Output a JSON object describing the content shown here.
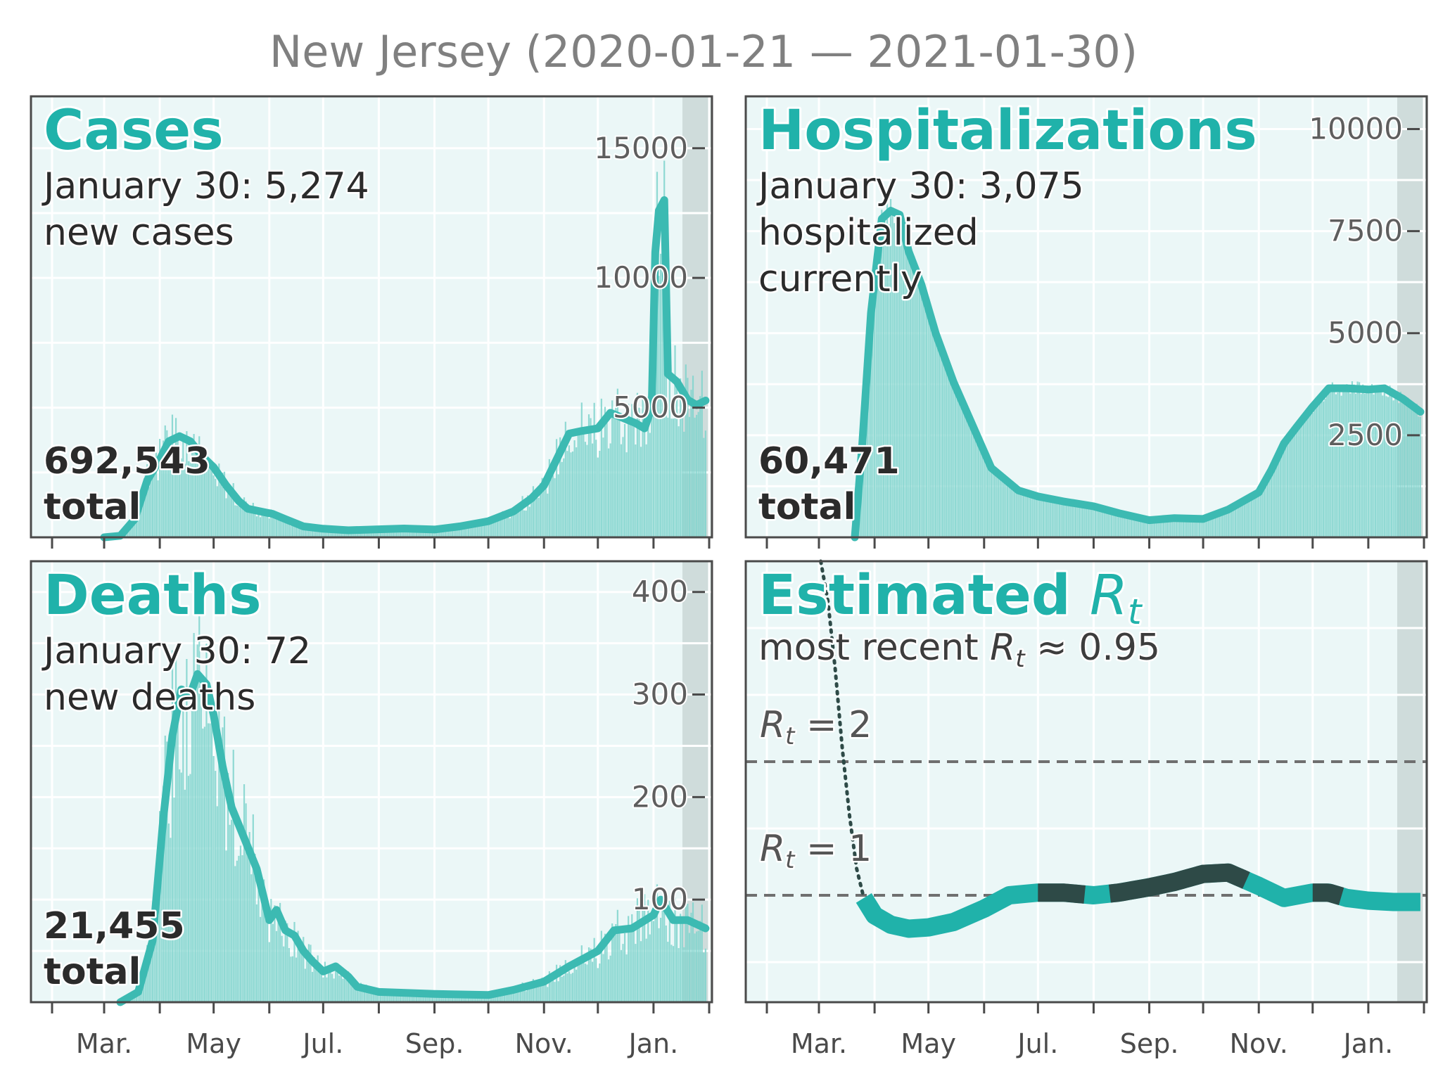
{
  "title": "New Jersey (2020-01-21 — 2021-01-30)",
  "colors": {
    "accent": "#20b2aa",
    "line": "#3cbab2",
    "bars": "#7fd3cc",
    "panel_bg": "#ebf7f7",
    "shade": "#cfdcdb",
    "dark": "#2e4a47",
    "text": "#2b2b2b",
    "tick_text": "#5e5e5e",
    "title_text": "#808080"
  },
  "x_ticks": [
    "Mar.",
    "May",
    "Jul.",
    "Sep.",
    "Nov.",
    "Jan."
  ],
  "panels": {
    "cases": {
      "title": "Cases",
      "subtitle_line1": "January 30: 5,274",
      "subtitle_line2": "new cases",
      "total_value": "692,543",
      "total_label": "total"
    },
    "hospitalizations": {
      "title": "Hospitalizations",
      "subtitle_line1": "January 30: 3,075",
      "subtitle_line2": "hospitalized",
      "subtitle_line3": "currently",
      "total_value": "60,471",
      "total_label": "total"
    },
    "deaths": {
      "title": "Deaths",
      "subtitle_line1": "January 30: 72",
      "subtitle_line2": "new deaths",
      "total_value": "21,455",
      "total_label": "total"
    },
    "rt": {
      "title": "Estimated",
      "title_symbol": "R",
      "title_sub": "t",
      "recent_prefix": "most recent",
      "recent_symbol": "R",
      "recent_sub": "t",
      "recent_value": "≈ 0.95",
      "ref2_symbol": "R",
      "ref2_sub": "t",
      "ref2_value": "= 2",
      "ref1_symbol": "R",
      "ref1_sub": "t",
      "ref1_value": "= 1"
    }
  },
  "chart_data": [
    {
      "name": "cases",
      "type": "bar+line",
      "x_range": [
        "2020-02-01",
        "2021-02-01"
      ],
      "y_ticks": [
        5000,
        10000,
        15000
      ],
      "ylim": [
        0,
        17000
      ],
      "shaded_from": "2021-01-17",
      "smoothed": [
        [
          "2020-03-01",
          0
        ],
        [
          "2020-03-10",
          60
        ],
        [
          "2020-03-18",
          700
        ],
        [
          "2020-03-25",
          2200
        ],
        [
          "2020-04-01",
          3000
        ],
        [
          "2020-04-06",
          3700
        ],
        [
          "2020-04-12",
          3900
        ],
        [
          "2020-04-18",
          3700
        ],
        [
          "2020-04-25",
          3100
        ],
        [
          "2020-05-01",
          2700
        ],
        [
          "2020-05-08",
          2000
        ],
        [
          "2020-05-15",
          1400
        ],
        [
          "2020-05-20",
          1100
        ],
        [
          "2020-05-27",
          1000
        ],
        [
          "2020-06-03",
          900
        ],
        [
          "2020-06-10",
          700
        ],
        [
          "2020-06-20",
          420
        ],
        [
          "2020-07-01",
          330
        ],
        [
          "2020-07-15",
          270
        ],
        [
          "2020-08-01",
          310
        ],
        [
          "2020-08-15",
          340
        ],
        [
          "2020-09-01",
          300
        ],
        [
          "2020-09-15",
          420
        ],
        [
          "2020-10-01",
          620
        ],
        [
          "2020-10-15",
          1000
        ],
        [
          "2020-10-25",
          1500
        ],
        [
          "2020-11-01",
          2000
        ],
        [
          "2020-11-08",
          3000
        ],
        [
          "2020-11-15",
          4000
        ],
        [
          "2020-11-22",
          4100
        ],
        [
          "2020-12-01",
          4200
        ],
        [
          "2020-12-08",
          4800
        ],
        [
          "2020-12-15",
          4600
        ],
        [
          "2020-12-22",
          4400
        ],
        [
          "2020-12-27",
          4200
        ],
        [
          "2020-12-31",
          5000
        ],
        [
          "2021-01-02",
          11000
        ],
        [
          "2021-01-04",
          12600
        ],
        [
          "2021-01-07",
          13000
        ],
        [
          "2021-01-09",
          6300
        ],
        [
          "2021-01-14",
          6000
        ],
        [
          "2021-01-20",
          5300
        ],
        [
          "2021-01-25",
          5100
        ],
        [
          "2021-01-30",
          5274
        ]
      ]
    },
    {
      "name": "hospitalizations",
      "type": "bar+line",
      "x_range": [
        "2020-02-01",
        "2021-02-01"
      ],
      "y_ticks": [
        2500,
        5000,
        7500,
        10000
      ],
      "ylim": [
        0,
        10800
      ],
      "shaded_from": "2021-01-17",
      "smoothed": [
        [
          "2020-03-21",
          0
        ],
        [
          "2020-03-25",
          2200
        ],
        [
          "2020-03-30",
          5500
        ],
        [
          "2020-04-05",
          7800
        ],
        [
          "2020-04-10",
          8000
        ],
        [
          "2020-04-15",
          7900
        ],
        [
          "2020-04-20",
          7000
        ],
        [
          "2020-04-27",
          6200
        ],
        [
          "2020-05-05",
          5000
        ],
        [
          "2020-05-15",
          3800
        ],
        [
          "2020-05-25",
          2800
        ],
        [
          "2020-06-05",
          1700
        ],
        [
          "2020-06-20",
          1150
        ],
        [
          "2020-07-01",
          1000
        ],
        [
          "2020-07-15",
          880
        ],
        [
          "2020-08-01",
          760
        ],
        [
          "2020-08-15",
          590
        ],
        [
          "2020-09-01",
          420
        ],
        [
          "2020-09-15",
          470
        ],
        [
          "2020-10-01",
          450
        ],
        [
          "2020-10-15",
          680
        ],
        [
          "2020-11-01",
          1100
        ],
        [
          "2020-11-08",
          1650
        ],
        [
          "2020-11-15",
          2300
        ],
        [
          "2020-11-22",
          2700
        ],
        [
          "2020-12-01",
          3200
        ],
        [
          "2020-12-10",
          3650
        ],
        [
          "2020-12-20",
          3650
        ],
        [
          "2021-01-01",
          3620
        ],
        [
          "2021-01-10",
          3650
        ],
        [
          "2021-01-20",
          3400
        ],
        [
          "2021-01-30",
          3075
        ]
      ]
    },
    {
      "name": "deaths",
      "type": "bar+line",
      "x_range": [
        "2020-02-01",
        "2021-02-01"
      ],
      "y_ticks": [
        100,
        200,
        300,
        400
      ],
      "ylim": [
        0,
        430
      ],
      "shaded_from": "2021-01-17",
      "smoothed": [
        [
          "2020-03-10",
          0
        ],
        [
          "2020-03-20",
          10
        ],
        [
          "2020-03-28",
          60
        ],
        [
          "2020-04-03",
          180
        ],
        [
          "2020-04-08",
          260
        ],
        [
          "2020-04-13",
          305
        ],
        [
          "2020-04-18",
          300
        ],
        [
          "2020-04-22",
          320
        ],
        [
          "2020-04-27",
          310
        ],
        [
          "2020-05-01",
          280
        ],
        [
          "2020-05-06",
          230
        ],
        [
          "2020-05-11",
          190
        ],
        [
          "2020-05-18",
          160
        ],
        [
          "2020-05-25",
          130
        ],
        [
          "2020-06-01",
          80
        ],
        [
          "2020-06-05",
          90
        ],
        [
          "2020-06-10",
          70
        ],
        [
          "2020-06-15",
          65
        ],
        [
          "2020-06-20",
          50
        ],
        [
          "2020-06-25",
          40
        ],
        [
          "2020-07-01",
          30
        ],
        [
          "2020-07-08",
          35
        ],
        [
          "2020-07-15",
          25
        ],
        [
          "2020-07-20",
          15
        ],
        [
          "2020-08-01",
          10
        ],
        [
          "2020-09-01",
          8
        ],
        [
          "2020-10-01",
          7
        ],
        [
          "2020-10-15",
          12
        ],
        [
          "2020-11-01",
          20
        ],
        [
          "2020-11-15",
          35
        ],
        [
          "2020-12-01",
          50
        ],
        [
          "2020-12-10",
          70
        ],
        [
          "2020-12-20",
          72
        ],
        [
          "2021-01-01",
          85
        ],
        [
          "2021-01-05",
          100
        ],
        [
          "2021-01-12",
          80
        ],
        [
          "2021-01-20",
          80
        ],
        [
          "2021-01-30",
          72
        ]
      ]
    },
    {
      "name": "rt",
      "type": "line",
      "x_range": [
        "2020-02-01",
        "2021-02-01"
      ],
      "reference_lines": [
        1,
        2
      ],
      "ylim": [
        0.2,
        3.5
      ],
      "shaded_from": "2021-01-17",
      "series": [
        [
          "2020-03-02",
          3.6
        ],
        [
          "2020-03-06",
          3.2
        ],
        [
          "2020-03-10",
          2.7
        ],
        [
          "2020-03-14",
          2.1
        ],
        [
          "2020-03-18",
          1.6
        ],
        [
          "2020-03-22",
          1.2
        ],
        [
          "2020-03-26",
          0.98
        ],
        [
          "2020-04-01",
          0.85
        ],
        [
          "2020-04-10",
          0.78
        ],
        [
          "2020-04-20",
          0.75
        ],
        [
          "2020-05-01",
          0.76
        ],
        [
          "2020-05-15",
          0.8
        ],
        [
          "2020-06-01",
          0.9
        ],
        [
          "2020-06-15",
          1.0
        ],
        [
          "2020-07-01",
          1.02
        ],
        [
          "2020-07-15",
          1.02
        ],
        [
          "2020-08-01",
          1.0
        ],
        [
          "2020-08-15",
          1.02
        ],
        [
          "2020-09-01",
          1.06
        ],
        [
          "2020-09-15",
          1.1
        ],
        [
          "2020-10-01",
          1.16
        ],
        [
          "2020-10-15",
          1.17
        ],
        [
          "2020-11-01",
          1.07
        ],
        [
          "2020-11-15",
          0.98
        ],
        [
          "2020-12-01",
          1.02
        ],
        [
          "2020-12-10",
          1.02
        ],
        [
          "2020-12-20",
          0.98
        ],
        [
          "2021-01-01",
          0.96
        ],
        [
          "2021-01-15",
          0.95
        ],
        [
          "2021-01-30",
          0.95
        ]
      ],
      "above_one_segments": [
        [
          "2020-07-01",
          "2020-07-28"
        ],
        [
          "2020-08-10",
          "2020-10-25"
        ],
        [
          "2020-12-01",
          "2020-12-18"
        ]
      ]
    }
  ]
}
